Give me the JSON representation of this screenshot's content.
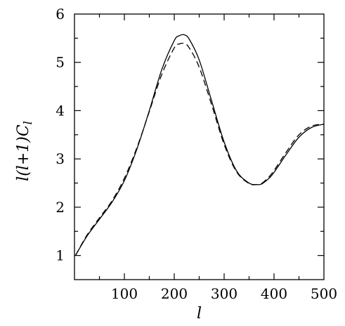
{
  "chart_data": {
    "type": "line",
    "title": "",
    "xlabel": "l",
    "ylabel": "l(l+1)C_l",
    "xlim": [
      0,
      500
    ],
    "ylim": [
      0.5,
      6
    ],
    "xticks": [
      100,
      200,
      300,
      400,
      500
    ],
    "xtick_labels": [
      "100",
      "200",
      "300",
      "400",
      "500"
    ],
    "yticks": [
      1,
      2,
      3,
      4,
      5,
      6
    ],
    "ytick_labels": [
      "1",
      "2",
      "3",
      "4",
      "5",
      "6"
    ],
    "grid": false,
    "legend": "none",
    "series": [
      {
        "style": "solid",
        "color": "#000000",
        "x": [
          2,
          25,
          50,
          75,
          100,
          125,
          150,
          175,
          200,
          210,
          220,
          230,
          250,
          275,
          300,
          325,
          350,
          365,
          375,
          390,
          400,
          425,
          450,
          475,
          500
        ],
        "y": [
          1.0,
          1.4,
          1.75,
          2.1,
          2.55,
          3.2,
          4.0,
          4.85,
          5.45,
          5.55,
          5.57,
          5.48,
          5.05,
          4.2,
          3.35,
          2.75,
          2.5,
          2.47,
          2.48,
          2.6,
          2.72,
          3.1,
          3.45,
          3.65,
          3.72
        ]
      },
      {
        "style": "dashed",
        "color": "#000000",
        "x": [
          2,
          25,
          50,
          75,
          100,
          125,
          150,
          175,
          200,
          210,
          220,
          230,
          250,
          275,
          300,
          325,
          350,
          365,
          375,
          390,
          400,
          425,
          450,
          475,
          500
        ],
        "y": [
          1.0,
          1.42,
          1.78,
          2.13,
          2.6,
          3.23,
          3.98,
          4.75,
          5.3,
          5.38,
          5.39,
          5.3,
          4.9,
          4.12,
          3.3,
          2.73,
          2.49,
          2.47,
          2.49,
          2.63,
          2.76,
          3.15,
          3.5,
          3.68,
          3.72
        ]
      }
    ]
  }
}
